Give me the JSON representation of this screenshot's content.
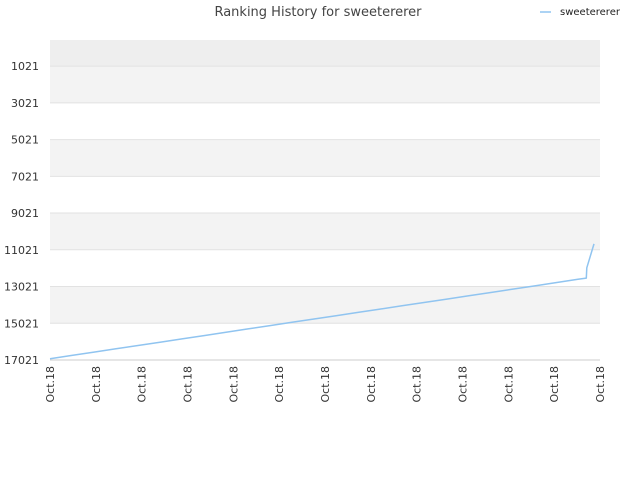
{
  "chart_data": {
    "type": "line",
    "title": "Ranking History for sweetererer",
    "xlabel": "",
    "ylabel": "",
    "x_tick_labels": [
      "Oct.18",
      "Oct.18",
      "Oct.18",
      "Oct.18",
      "Oct.18",
      "Oct.18",
      "Oct.18",
      "Oct.18",
      "Oct.18",
      "Oct.18",
      "Oct.18",
      "Oct.18",
      "Oct.18"
    ],
    "y_ticks": [
      1021,
      3021,
      5021,
      7021,
      9021,
      11021,
      13021,
      15021,
      17021
    ],
    "ylim": [
      17021,
      -400
    ],
    "y_inverted": true,
    "grid": "horizontal bands",
    "legend_position": "top-right",
    "series": [
      {
        "name": "sweetererer",
        "color": "#90c4f0",
        "x": [
          0,
          4,
          8,
          12,
          16,
          20,
          24,
          28,
          32,
          36,
          40,
          44,
          48,
          52,
          56,
          60,
          64,
          68,
          72,
          76,
          80,
          84,
          88,
          92,
          96,
          97.5,
          97.6,
          98.9
        ],
        "values": [
          16950,
          16770,
          16590,
          16410,
          16230,
          16050,
          15870,
          15690,
          15510,
          15330,
          15150,
          14970,
          14790,
          14610,
          14430,
          14250,
          14070,
          13890,
          13710,
          13530,
          13350,
          13170,
          12990,
          12810,
          12630,
          12560,
          12000,
          10700
        ]
      }
    ]
  }
}
